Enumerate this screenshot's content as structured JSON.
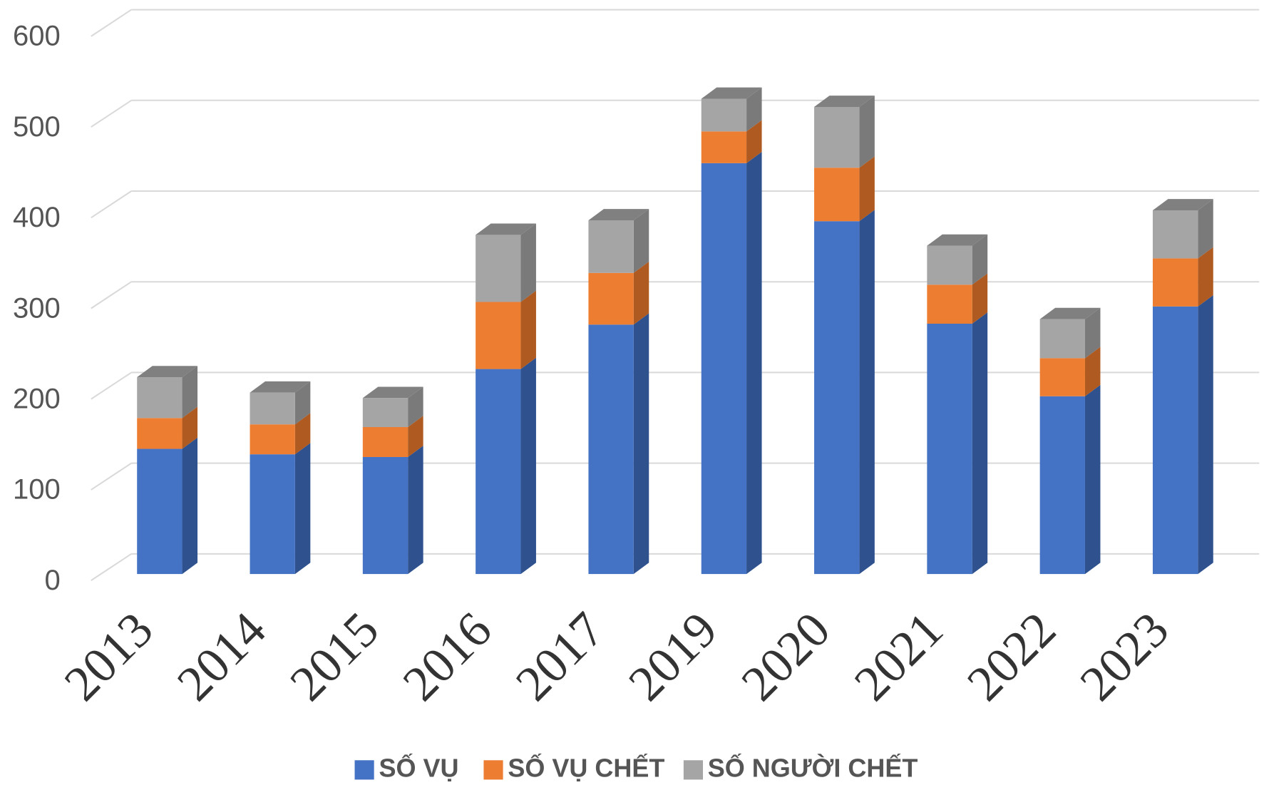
{
  "chart_data": {
    "type": "bar3d_stacked",
    "categories": [
      "2013",
      "2014",
      "2015",
      "2016",
      "2017",
      "2019",
      "2020",
      "2021",
      "2022",
      "2023"
    ],
    "series": [
      {
        "name": "SỐ VỤ",
        "color": "#4472c4",
        "values": [
          138,
          132,
          129,
          226,
          275,
          453,
          389,
          276,
          196,
          295
        ]
      },
      {
        "name": "SỐ VỤ CHẾT",
        "color": "#ed7d31",
        "values": [
          34,
          33,
          33,
          74,
          57,
          35,
          59,
          43,
          42,
          53
        ]
      },
      {
        "name": "SỐ NGƯỜI CHẾT",
        "color": "#a5a5a5",
        "values": [
          45,
          35,
          32,
          74,
          58,
          36,
          67,
          43,
          43,
          53
        ]
      }
    ],
    "ylim": [
      0,
      600
    ],
    "yticks": [
      0,
      100,
      200,
      300,
      400,
      500,
      600
    ],
    "grid": true,
    "legend": "bottom"
  }
}
